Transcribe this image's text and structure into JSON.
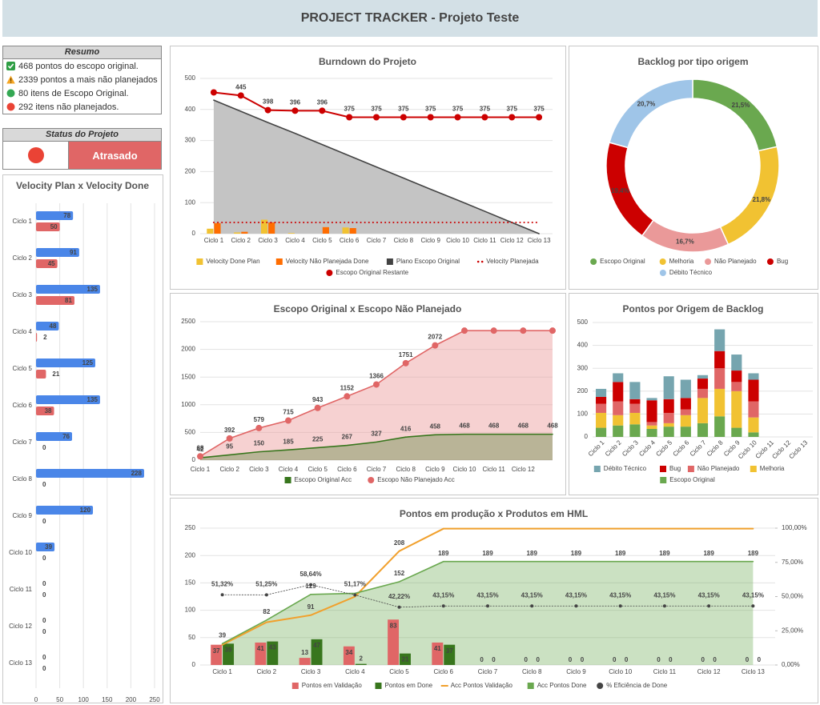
{
  "header": {
    "title": "PROJECT TRACKER - Projeto Teste"
  },
  "summary": {
    "title": "Resumo",
    "items": [
      "468 pontos do escopo original.",
      "2339 pontos a mais não planejados",
      "80 itens de Escopo Original.",
      "292 itens não planejados."
    ]
  },
  "status": {
    "title": "Status do Projeto",
    "value": "Atrasado"
  },
  "chart_data": [
    {
      "type": "hbar",
      "title": "Velocity Plan x Velocity Done",
      "categories": [
        "Ciclo 1",
        "Ciclo 2",
        "Ciclo 3",
        "Ciclo 4",
        "Ciclo 5",
        "Ciclo 6",
        "Ciclo 7",
        "Ciclo 8",
        "Ciclo 9",
        "Ciclo 10",
        "Ciclo 11",
        "Ciclo 12",
        "Ciclo 13"
      ],
      "series": [
        {
          "color": "#4a86e8",
          "values": [
            78,
            91,
            135,
            48,
            125,
            135,
            76,
            228,
            120,
            39,
            0,
            0,
            0
          ]
        },
        {
          "color": "#e06666",
          "values": [
            50,
            45,
            81,
            2,
            21,
            38,
            0,
            0,
            0,
            0,
            0,
            0,
            0
          ]
        }
      ],
      "xlim": [
        0,
        250
      ],
      "xticks": [
        0,
        50,
        100,
        150,
        200,
        250
      ],
      "grid": true,
      "data_labels": true
    },
    {
      "type": "combo",
      "title": "Burndown do Projeto",
      "categories": [
        "Ciclo 1",
        "Ciclo 2",
        "Ciclo 3",
        "Ciclo 4",
        "Ciclo 5",
        "Ciclo 6",
        "Ciclo 7",
        "Ciclo 8",
        "Ciclo 9",
        "Ciclo 10",
        "Ciclo 11",
        "Ciclo 12",
        "Ciclo 13"
      ],
      "series": [
        {
          "name": "Velocity Done Plan",
          "kind": "bar",
          "color": "#f1c232",
          "values": [
            16,
            4,
            45,
            2,
            0,
            20,
            0,
            0,
            0,
            0,
            0,
            0,
            0
          ]
        },
        {
          "name": "Velocity Não Planejada Done",
          "kind": "bar",
          "color": "#ff6d01",
          "values": [
            34,
            6,
            36,
            0,
            21,
            18,
            0,
            0,
            0,
            0,
            0,
            0,
            0
          ]
        },
        {
          "name": "Plano Escopo Original",
          "kind": "area",
          "color": "#434343",
          "fill": "#c4c4c4",
          "values": [
            430,
            394,
            358,
            323,
            287,
            251,
            215,
            179,
            143,
            108,
            72,
            36,
            0
          ]
        },
        {
          "name": "Velocity Planejada",
          "kind": "dotted",
          "color": "#cc0000",
          "values": [
            36,
            36,
            36,
            36,
            36,
            36,
            36,
            36,
            36,
            36,
            36,
            36,
            36
          ]
        },
        {
          "name": "Escopo Original Restante",
          "kind": "line",
          "marker": "circle",
          "color": "#cc0000",
          "label_color": "#222",
          "values": [
            455,
            445,
            398,
            396,
            396,
            375,
            375,
            375,
            375,
            375,
            375,
            375,
            375
          ],
          "value_labels": [
            null,
            "445",
            "398",
            "396",
            "396",
            "375",
            "375",
            "375",
            "375",
            "375",
            "375",
            "375",
            "375"
          ]
        }
      ],
      "ylim": [
        0,
        500
      ],
      "yticks": [
        0,
        100,
        200,
        300,
        400,
        500
      ],
      "grid": true
    },
    {
      "type": "donut",
      "title": "Backlog por tipo origem",
      "categories": [
        "Escopo Original",
        "Melhoria",
        "Não Planejado",
        "Bug",
        "Débito Técnico"
      ],
      "values": [
        21.5,
        21.8,
        16.7,
        19.4,
        20.7
      ],
      "value_labels": [
        "21,5%",
        "21,8%",
        "16,7%",
        "19,4%",
        "20,7%"
      ],
      "colors": [
        "#6aa84f",
        "#f1c232",
        "#ea9999",
        "#cc0000",
        "#9fc5e8"
      ]
    },
    {
      "type": "area",
      "title": "Escopo Original x Escopo Não Planejado",
      "categories": [
        "Ciclo 1",
        "Ciclo 2",
        "Ciclo 3",
        "Ciclo 4",
        "Ciclo 5",
        "Ciclo 6",
        "Ciclo 7",
        "Ciclo 8",
        "Ciclo 9",
        "Ciclo 10",
        "Ciclo 11",
        "Ciclo 12",
        null
      ],
      "series": [
        {
          "name": "Escopo Original Acc",
          "kind": "area",
          "color": "#38761d",
          "fill": "rgba(56,118,29,0.32)",
          "values": [
            42,
            95,
            150,
            185,
            225,
            267,
            327,
            416,
            458,
            468,
            468,
            468,
            468
          ],
          "value_labels": [
            "42",
            "95",
            "150",
            "185",
            "225",
            "267",
            "327",
            "416",
            "458",
            "468",
            "468",
            "468",
            "468"
          ]
        },
        {
          "name": "Escopo Não Planejado Acc",
          "kind": "area",
          "marker": "circle",
          "color": "#e06666",
          "fill": "rgba(234,153,153,0.45)",
          "values": [
            68,
            392,
            579,
            715,
            943,
            1152,
            1366,
            1751,
            2072,
            2339,
            2339,
            2339,
            2339
          ],
          "value_labels": [
            "68",
            "392",
            "579",
            "715",
            "943",
            "1152",
            "1366",
            "1751",
            "2072",
            null,
            null,
            null,
            null
          ]
        }
      ],
      "ylim": [
        0,
        2500
      ],
      "yticks": [
        0,
        500,
        1000,
        1500,
        2000,
        2500
      ],
      "grid": true
    },
    {
      "type": "stacked_bar",
      "title": "Pontos por Origem de Backlog",
      "categories": [
        "Ciclo 1",
        "Ciclo 2",
        "Ciclo 3",
        "Ciclo 4",
        "Ciclo 5",
        "Ciclo 6",
        "Ciclo 7",
        "Ciclo 8",
        "Ciclo 9",
        "Ciclo 10",
        "Ciclo 11",
        "Ciclo 12",
        "Ciclo 13"
      ],
      "series": [
        {
          "name": "Escopo Original",
          "color": "#6aa84f",
          "values": [
            40,
            50,
            55,
            35,
            45,
            45,
            60,
            90,
            40,
            20,
            0,
            0,
            0
          ]
        },
        {
          "name": "Melhoria",
          "color": "#f1c232",
          "values": [
            65,
            45,
            50,
            15,
            15,
            50,
            110,
            120,
            160,
            65,
            0,
            0,
            0
          ]
        },
        {
          "name": "Não Planejado",
          "color": "#e06666",
          "values": [
            40,
            60,
            40,
            15,
            45,
            25,
            40,
            90,
            40,
            70,
            0,
            0,
            0
          ]
        },
        {
          "name": "Bug",
          "color": "#cc0000",
          "values": [
            30,
            85,
            20,
            95,
            60,
            50,
            45,
            75,
            50,
            95,
            0,
            0,
            0
          ]
        },
        {
          "name": "Débito Técnico",
          "color": "#76a5af",
          "values": [
            35,
            38,
            75,
            10,
            100,
            80,
            15,
            95,
            70,
            28,
            0,
            0,
            0
          ]
        }
      ],
      "ylim": [
        0,
        500
      ],
      "yticks": [
        0,
        100,
        200,
        300,
        400,
        500
      ],
      "grid": true
    },
    {
      "type": "combo",
      "title": "Pontos em produção x Produtos em HML",
      "categories": [
        "Ciclo 1",
        "Ciclo 2",
        "Ciclo 3",
        "Ciclo 4",
        "Ciclo 5",
        "Ciclo 6",
        "Ciclo 7",
        "Ciclo 8",
        "Ciclo 9",
        "Ciclo 10",
        "Ciclo 11",
        "Ciclo 12",
        "Ciclo 13"
      ],
      "series": [
        {
          "name": "Pontos em Validação",
          "kind": "bar",
          "color": "#e06666",
          "label_color": "#222",
          "values": [
            37,
            41,
            13,
            34,
            83,
            41,
            0,
            0,
            0,
            0,
            0,
            0,
            0
          ],
          "value_labels": [
            "37",
            "41",
            "13",
            "34",
            "83",
            "41",
            "0",
            "0",
            "0",
            "0",
            "0",
            "0",
            "0"
          ]
        },
        {
          "name": "Pontos em Done",
          "kind": "bar",
          "color": "#38761d",
          "label_color": "#ffffff",
          "values": [
            39,
            43,
            47,
            2,
            21,
            37,
            0,
            0,
            0,
            0,
            0,
            0,
            0
          ],
          "value_labels": [
            "39",
            "43",
            "47",
            "2",
            "21",
            "37",
            "0",
            "0",
            "0",
            "0",
            "0",
            "0",
            "0"
          ]
        },
        {
          "name": "Acc Pontos Validação",
          "kind": "line",
          "color": "#f1a02c",
          "values": [
            37,
            78,
            91,
            125,
            208,
            249,
            249,
            249,
            249,
            249,
            249,
            249,
            249
          ],
          "value_labels": [
            null,
            null,
            "91",
            null,
            "208",
            null,
            null,
            null,
            null,
            null,
            null,
            null,
            null
          ]
        },
        {
          "name": "Acc Pontos Done",
          "kind": "area",
          "color": "#6aa84f",
          "fill": "rgba(106,168,79,0.35)",
          "values": [
            39,
            82,
            129,
            131,
            152,
            189,
            189,
            189,
            189,
            189,
            189,
            189,
            189
          ],
          "value_labels": [
            "39",
            "82",
            "129",
            null,
            "152",
            "189",
            "189",
            "189",
            "189",
            "189",
            "189",
            "189",
            "189"
          ]
        },
        {
          "name": "% Eficiência de Done",
          "kind": "dotted",
          "marker": "circle",
          "axis": "y2",
          "color": "#444444",
          "label_color": "#333",
          "values": [
            51.32,
            51.25,
            58.64,
            51.17,
            42.22,
            43.15,
            43.15,
            43.15,
            43.15,
            43.15,
            43.15,
            43.15,
            43.15
          ],
          "value_labels": [
            "51,32%",
            "51,25%",
            "58,64%",
            "51,17%",
            "42,22%",
            "43,15%",
            "43,15%",
            "43,15%",
            "43,15%",
            "43,15%",
            "43,15%",
            "43,15%",
            "43,15%"
          ]
        }
      ],
      "ylim": [
        0,
        250
      ],
      "yticks": [
        0,
        50,
        100,
        150,
        200,
        250
      ],
      "y2lim": [
        0,
        100
      ],
      "y2ticks": [
        {
          "value": 0,
          "label": "0,00%"
        },
        {
          "value": 25,
          "label": "25,00%"
        },
        {
          "value": 50,
          "label": "50,00%"
        },
        {
          "value": 75,
          "label": "75,00%"
        },
        {
          "value": 100,
          "label": "100,00%"
        }
      ],
      "grid": true
    }
  ]
}
